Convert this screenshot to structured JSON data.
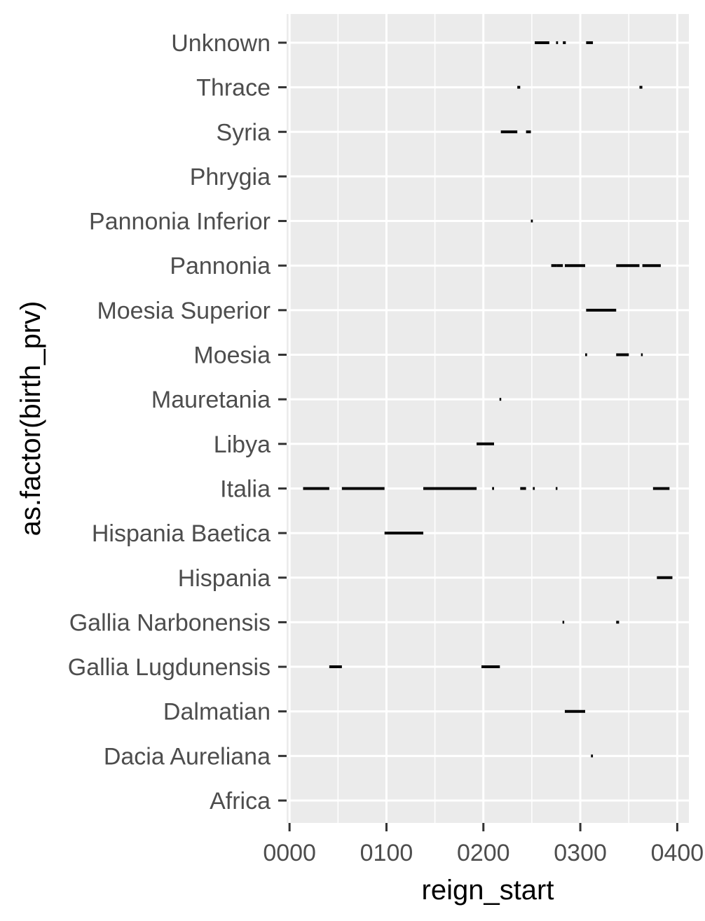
{
  "chart_data": {
    "type": "segment",
    "xlabel": "reign_start",
    "ylabel": "as.factor(birth_prv)",
    "xlim": [
      -3,
      412
    ],
    "x_ticks": [
      0,
      100,
      200,
      300,
      400
    ],
    "x_tick_labels": [
      "0000",
      "0100",
      "0200",
      "0300",
      "0400"
    ],
    "categories": [
      "Africa",
      "Dacia Aureliana",
      "Dalmatian",
      "Gallia Lugdunensis",
      "Gallia Narbonensis",
      "Hispania",
      "Hispania Baetica",
      "Italia",
      "Libya",
      "Mauretania",
      "Moesia",
      "Moesia Superior",
      "Pannonia",
      "Pannonia Inferior",
      "Phrygia",
      "Syria",
      "Thrace",
      "Unknown"
    ],
    "grid": true,
    "legend": "none",
    "colors": {
      "panel": "#ebebeb",
      "grid": "#ffffff",
      "segment": "#000000",
      "tick_text": "#4d4d4d",
      "tick_mark": "#333333"
    },
    "segments": [
      {
        "category": "Unknown",
        "start": 253,
        "end": 268
      },
      {
        "category": "Unknown",
        "start": 275,
        "end": 277
      },
      {
        "category": "Unknown",
        "start": 282,
        "end": 285
      },
      {
        "category": "Unknown",
        "start": 306,
        "end": 313
      },
      {
        "category": "Thrace",
        "start": 235,
        "end": 238
      },
      {
        "category": "Thrace",
        "start": 361,
        "end": 364
      },
      {
        "category": "Syria",
        "start": 218,
        "end": 235
      },
      {
        "category": "Syria",
        "start": 244,
        "end": 249
      },
      {
        "category": "Pannonia Inferior",
        "start": 249,
        "end": 251
      },
      {
        "category": "Pannonia",
        "start": 270,
        "end": 276
      },
      {
        "category": "Pannonia",
        "start": 276,
        "end": 282
      },
      {
        "category": "Pannonia",
        "start": 284,
        "end": 305
      },
      {
        "category": "Pannonia",
        "start": 337,
        "end": 361
      },
      {
        "category": "Pannonia",
        "start": 364,
        "end": 383
      },
      {
        "category": "Moesia Superior",
        "start": 306,
        "end": 337
      },
      {
        "category": "Moesia",
        "start": 305,
        "end": 307
      },
      {
        "category": "Moesia",
        "start": 337,
        "end": 350
      },
      {
        "category": "Moesia",
        "start": 363,
        "end": 364
      },
      {
        "category": "Mauretania",
        "start": 217,
        "end": 218
      },
      {
        "category": "Libya",
        "start": 193,
        "end": 211
      },
      {
        "category": "Italia",
        "start": 14,
        "end": 41
      },
      {
        "category": "Italia",
        "start": 54,
        "end": 98
      },
      {
        "category": "Italia",
        "start": 138,
        "end": 193
      },
      {
        "category": "Italia",
        "start": 209,
        "end": 211
      },
      {
        "category": "Italia",
        "start": 238,
        "end": 244
      },
      {
        "category": "Italia",
        "start": 251,
        "end": 253
      },
      {
        "category": "Italia",
        "start": 275,
        "end": 276
      },
      {
        "category": "Italia",
        "start": 375,
        "end": 392
      },
      {
        "category": "Hispania Baetica",
        "start": 98,
        "end": 138
      },
      {
        "category": "Hispania",
        "start": 379,
        "end": 395
      },
      {
        "category": "Gallia Narbonensis",
        "start": 282,
        "end": 283
      },
      {
        "category": "Gallia Narbonensis",
        "start": 337,
        "end": 340
      },
      {
        "category": "Gallia Lugdunensis",
        "start": 41,
        "end": 54
      },
      {
        "category": "Gallia Lugdunensis",
        "start": 198,
        "end": 217
      },
      {
        "category": "Dalmatian",
        "start": 284,
        "end": 305
      },
      {
        "category": "Dacia Aureliana",
        "start": 311,
        "end": 313
      }
    ]
  }
}
